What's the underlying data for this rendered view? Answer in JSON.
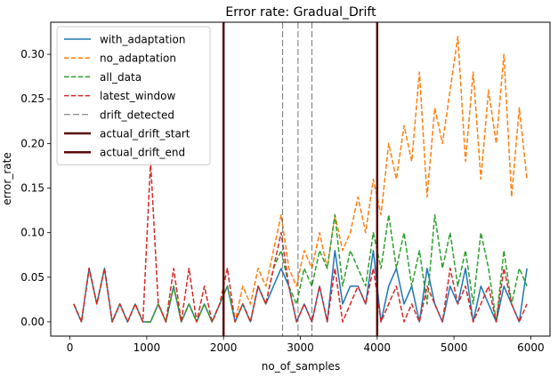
{
  "chart_data": {
    "type": "line",
    "title": "Error rate: Gradual_Drift",
    "xlabel": "no_of_samples",
    "ylabel": "error_rate",
    "xlim": [
      -250,
      6250
    ],
    "ylim": [
      -0.016,
      0.336
    ],
    "xticks": [
      0,
      1000,
      2000,
      3000,
      4000,
      5000,
      6000
    ],
    "yticks": [
      0.0,
      0.05,
      0.1,
      0.15,
      0.2,
      0.25,
      0.3
    ],
    "ytick_labels": [
      "0.00",
      "0.05",
      "0.10",
      "0.15",
      "0.20",
      "0.25",
      "0.30"
    ],
    "grid": false,
    "legend_position": "upper left",
    "x": [
      50,
      150,
      250,
      350,
      450,
      550,
      650,
      750,
      850,
      950,
      1050,
      1150,
      1250,
      1350,
      1450,
      1550,
      1650,
      1750,
      1850,
      1950,
      2050,
      2150,
      2250,
      2350,
      2450,
      2550,
      2650,
      2750,
      2850,
      2950,
      3050,
      3150,
      3250,
      3350,
      3450,
      3550,
      3650,
      3750,
      3850,
      3950,
      4050,
      4150,
      4250,
      4350,
      4450,
      4550,
      4650,
      4750,
      4850,
      4950,
      5050,
      5150,
      5250,
      5350,
      5450,
      5550,
      5650,
      5750,
      5850,
      5950
    ],
    "series": [
      {
        "name": "with_adaptation",
        "color": "#1f77b4",
        "dash": "solid",
        "values": [
          0.02,
          0.0,
          0.06,
          0.02,
          0.06,
          0.0,
          0.02,
          0.0,
          0.02,
          0.0,
          0.0,
          0.02,
          0.0,
          0.04,
          0.0,
          0.02,
          0.0,
          0.02,
          0.0,
          0.02,
          0.04,
          0.0,
          0.02,
          0.0,
          0.04,
          0.02,
          0.04,
          0.06,
          0.04,
          0.0,
          0.02,
          0.0,
          0.04,
          0.0,
          0.08,
          0.02,
          0.04,
          0.04,
          0.02,
          0.08,
          0.0,
          0.04,
          0.06,
          0.02,
          0.04,
          0.0,
          0.06,
          0.02,
          0.0,
          0.04,
          0.02,
          0.06,
          0.0,
          0.04,
          0.02,
          0.0,
          0.04,
          0.02,
          0.0,
          0.06
        ]
      },
      {
        "name": "no_adaptation",
        "color": "#ff7f0e",
        "dash": "dashed",
        "values": [
          0.02,
          0.0,
          0.06,
          0.02,
          0.06,
          0.0,
          0.02,
          0.0,
          0.02,
          0.0,
          0.0,
          0.02,
          0.0,
          0.04,
          0.0,
          0.02,
          0.0,
          0.02,
          0.0,
          0.02,
          0.04,
          0.0,
          0.04,
          0.02,
          0.06,
          0.04,
          0.08,
          0.12,
          0.06,
          0.04,
          0.08,
          0.06,
          0.1,
          0.06,
          0.12,
          0.08,
          0.1,
          0.14,
          0.1,
          0.16,
          0.12,
          0.2,
          0.16,
          0.22,
          0.18,
          0.28,
          0.14,
          0.24,
          0.2,
          0.26,
          0.32,
          0.18,
          0.28,
          0.16,
          0.26,
          0.2,
          0.3,
          0.14,
          0.24,
          0.16
        ]
      },
      {
        "name": "all_data",
        "color": "#2ca02c",
        "dash": "dashed",
        "values": [
          0.02,
          0.0,
          0.06,
          0.02,
          0.06,
          0.0,
          0.02,
          0.0,
          0.02,
          0.0,
          0.0,
          0.02,
          0.0,
          0.04,
          0.0,
          0.02,
          0.0,
          0.02,
          0.0,
          0.02,
          0.04,
          0.0,
          0.02,
          0.0,
          0.04,
          0.02,
          0.06,
          0.08,
          0.04,
          0.02,
          0.06,
          0.04,
          0.08,
          0.06,
          0.12,
          0.04,
          0.08,
          0.06,
          0.04,
          0.1,
          0.06,
          0.12,
          0.06,
          0.1,
          0.04,
          0.08,
          0.02,
          0.12,
          0.06,
          0.1,
          0.04,
          0.08,
          0.02,
          0.1,
          0.06,
          0.0,
          0.08,
          0.02,
          0.06,
          0.04
        ]
      },
      {
        "name": "latest_window",
        "color": "#d62728",
        "dash": "dashed",
        "values": [
          0.02,
          0.0,
          0.06,
          0.02,
          0.06,
          0.0,
          0.02,
          0.0,
          0.02,
          0.0,
          0.18,
          0.02,
          0.0,
          0.06,
          0.0,
          0.06,
          0.0,
          0.04,
          0.0,
          0.02,
          0.06,
          0.0,
          0.02,
          0.0,
          0.04,
          0.02,
          0.06,
          0.1,
          0.04,
          0.0,
          0.02,
          0.0,
          0.04,
          0.0,
          0.06,
          0.0,
          0.02,
          0.04,
          0.02,
          0.06,
          0.0,
          0.02,
          0.04,
          0.0,
          0.02,
          0.0,
          0.04,
          0.02,
          0.0,
          0.06,
          0.02,
          0.04,
          0.0,
          0.02,
          0.04,
          0.0,
          0.06,
          0.02,
          0.0,
          0.02
        ]
      }
    ],
    "drift_detected": [
      2770,
      2970,
      3150
    ],
    "actual_drift_start": 2000,
    "actual_drift_end": 4000,
    "legend": [
      {
        "label": "with_adaptation",
        "color": "#1f77b4",
        "style": "solid",
        "width": 1.5
      },
      {
        "label": "no_adaptation",
        "color": "#ff7f0e",
        "style": "dashed",
        "width": 1.5
      },
      {
        "label": "all_data",
        "color": "#2ca02c",
        "style": "dashed",
        "width": 1.5
      },
      {
        "label": "latest_window",
        "color": "#d62728",
        "style": "dashed",
        "width": 1.5
      },
      {
        "label": "drift_detected",
        "color": "#555555",
        "style": "dashed-thin",
        "width": 0.8
      },
      {
        "label": "actual_drift_start",
        "color": "#5a0a0a",
        "style": "solid",
        "width": 2.5
      },
      {
        "label": "actual_drift_end",
        "color": "#5a0a0a",
        "style": "solid",
        "width": 2.5
      }
    ]
  }
}
